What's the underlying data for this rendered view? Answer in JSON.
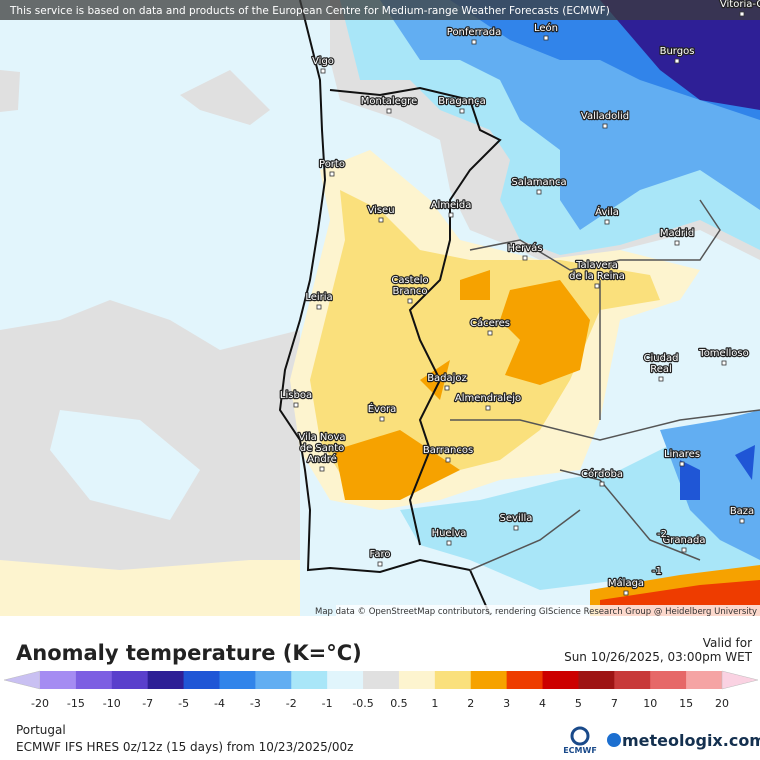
{
  "banner": "This service is based on data and products of the European Centre for Medium-range Weather Forecasts (ECMWF)",
  "attribution": "Map data © OpenStreetMap contributors, rendering GIScience Research Group @ Heidelberg University",
  "map": {
    "cities": [
      {
        "name": [
          "Vitoria-G"
        ]
      },
      {
        "name": [
          "Ponferrada"
        ]
      },
      {
        "name": [
          "León"
        ]
      },
      {
        "name": [
          "Burgos"
        ]
      },
      {
        "name": [
          "Vigo"
        ]
      },
      {
        "name": [
          "Montalegre"
        ]
      },
      {
        "name": [
          "Bragança"
        ]
      },
      {
        "name": [
          "Valladolid"
        ]
      },
      {
        "name": [
          "Porto"
        ]
      },
      {
        "name": [
          "Salamanca"
        ]
      },
      {
        "name": [
          "Viseu"
        ]
      },
      {
        "name": [
          "Almeida"
        ]
      },
      {
        "name": [
          "Ávila"
        ]
      },
      {
        "name": [
          "Madrid"
        ]
      },
      {
        "name": [
          "Hervás"
        ]
      },
      {
        "name": [
          "Talavera",
          "de la Reina"
        ]
      },
      {
        "name": [
          "Castelo",
          "Branco"
        ]
      },
      {
        "name": [
          "Leiria"
        ]
      },
      {
        "name": [
          "Cáceres"
        ]
      },
      {
        "name": [
          "Ciudad",
          "Real"
        ]
      },
      {
        "name": [
          "Tomelloso"
        ]
      },
      {
        "name": [
          "Badajoz"
        ]
      },
      {
        "name": [
          "Almendralejo"
        ]
      },
      {
        "name": [
          "Lisboa"
        ]
      },
      {
        "name": [
          "Évora"
        ]
      },
      {
        "name": [
          "Vila Nova",
          "de Santo",
          "André"
        ]
      },
      {
        "name": [
          "Barrancos"
        ]
      },
      {
        "name": [
          "Linares"
        ]
      },
      {
        "name": [
          "Córdoba"
        ]
      },
      {
        "name": [
          "Baza"
        ]
      },
      {
        "name": [
          "Sevilla"
        ]
      },
      {
        "name": [
          "Huelva"
        ]
      },
      {
        "name": [
          "Granada"
        ]
      },
      {
        "name": [
          "Faro"
        ]
      },
      {
        "name": [
          "Málaga"
        ]
      }
    ],
    "contour_labels": [
      "-2",
      "-1"
    ]
  },
  "legend": {
    "title": "Anomaly temperature (K=°C)",
    "ticks": [
      "-20",
      "-15",
      "-10",
      "-7",
      "-5",
      "-4",
      "-3",
      "-2",
      "-1",
      "-0.5",
      "0.5",
      "1",
      "2",
      "3",
      "4",
      "5",
      "7",
      "10",
      "15",
      "20"
    ],
    "colors": [
      "#c9c0f2",
      "#a58cf2",
      "#7d5fe2",
      "#5a3fcc",
      "#2e1f96",
      "#1f56d6",
      "#3184ea",
      "#62aef2",
      "#a9e6f8",
      "#e1f5fc",
      "#e0e0e0",
      "#fdf4cf",
      "#fae07c",
      "#f6a200",
      "#ee3c00",
      "#cc0000",
      "#9e1414",
      "#c83a3a",
      "#e66868",
      "#f5a4a4",
      "#fad2e2"
    ]
  },
  "valid": {
    "label": "Valid for",
    "time": "Sun 10/26/2025, 03:00pm WET"
  },
  "footer": {
    "region": "Portugal",
    "model": "ECMWF IFS HRES 0z/12z (15 days) from  10/23/2025/00z",
    "logo": "ECMWF",
    "brand": "meteologix.com"
  }
}
